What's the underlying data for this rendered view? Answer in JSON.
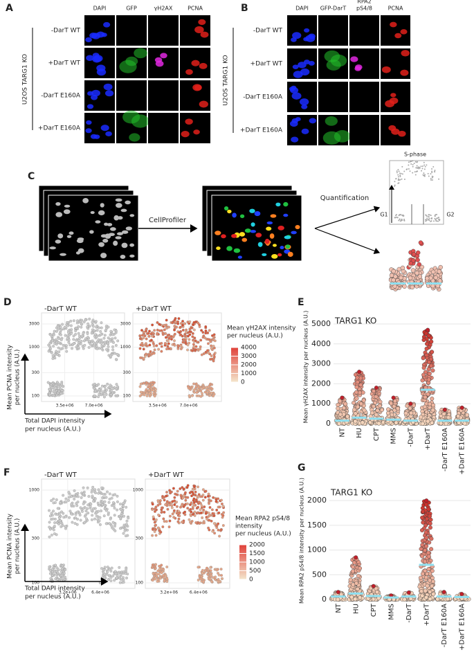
{
  "panel_a": {
    "label": "A",
    "channels": [
      [
        "DAPI"
      ],
      [
        "GFP"
      ],
      [
        "γH2AX"
      ],
      [
        "PCNA"
      ]
    ],
    "rows": [
      "-DarT WT",
      "+DarT WT",
      "-DarT E160A",
      "+DarT E160A"
    ],
    "side_label": "U2OS TARG1 KO"
  },
  "panel_b": {
    "label": "B",
    "channels": [
      [
        "DAPI"
      ],
      [
        "GFP-DarT"
      ],
      [
        "RPA2",
        "pS4/8"
      ],
      [
        "PCNA"
      ]
    ],
    "rows": [
      "-DarT WT",
      "+DarT WT",
      "-DarT E160A",
      "+DarT E160A"
    ],
    "side_label": "U2OS TARG1 KO"
  },
  "panel_c": {
    "label": "C",
    "method": "CellProfiler",
    "step": "Quantification",
    "phase": "S-phase",
    "g1": "G1",
    "g2": "G2"
  },
  "panel_d": {
    "label": "D",
    "plots": [
      "-DarT WT",
      "+DarT WT"
    ],
    "y_axis": [
      "Mean PCNA intensity",
      "per nucleus (A.U.)"
    ],
    "x_axis": [
      "Total DAPI intensity",
      "per nucleus (A.U.)"
    ],
    "yticks": [
      100,
      300,
      1000,
      3000
    ],
    "xticks": [
      "3.5e+06",
      "7.0e+06"
    ],
    "legend_title": [
      "Mean γH2AX intensity",
      "per nucleus (A.U.)"
    ],
    "legend_ticks": [
      0,
      1000,
      2000,
      3000,
      4000
    ]
  },
  "panel_e": {
    "label": "E",
    "title": "TARG1 KO",
    "y_axis": "Mean γH2AX intensity per nucleus (A.U.)",
    "ylim": [
      0,
      5000
    ],
    "yticks": [
      0,
      1000,
      2000,
      3000,
      4000,
      5000
    ],
    "categories": [
      "NT",
      "HU",
      "CPT",
      "MMS",
      "-DarT",
      "+DarT",
      "-DarT E160A",
      "+DarT E160A"
    ],
    "max": [
      1300,
      2600,
      1800,
      1300,
      1000,
      4700,
      700,
      800
    ],
    "median": [
      150,
      300,
      250,
      200,
      150,
      1700,
      150,
      150
    ]
  },
  "panel_f": {
    "label": "F",
    "plots": [
      "-DarT WT",
      "+DarT WT"
    ],
    "y_axis": [
      "Mean PCNA intensity",
      "per nucleus (A.U.)"
    ],
    "x_axis": [
      "Total DAPI intensity",
      "per nucleus (A.U.)"
    ],
    "yticks": [
      100,
      300,
      1000
    ],
    "xticks": [
      "3.2e+06",
      "6.4e+06"
    ],
    "legend_title": [
      "Mean RPA2 pS4/8",
      "intensity",
      "per nucleus (A.U.)"
    ],
    "legend_ticks": [
      0,
      500,
      1000,
      1500,
      2000
    ]
  },
  "panel_g": {
    "label": "G",
    "title": "TARG1 KO",
    "y_axis": "Mean RPA2 pS4/8 intensity per nucleus (A.U.)",
    "ylim": [
      0,
      2100
    ],
    "yticks": [
      0,
      500,
      1000,
      1500,
      2000
    ],
    "categories": [
      "NT",
      "HU",
      "CPT",
      "MMS",
      "-DarT",
      "+DarT",
      "-DarT E160A",
      "+DarT E160A"
    ],
    "max": [
      150,
      850,
      270,
      80,
      140,
      2000,
      150,
      110
    ],
    "median": [
      60,
      120,
      70,
      40,
      60,
      700,
      60,
      50
    ]
  }
}
